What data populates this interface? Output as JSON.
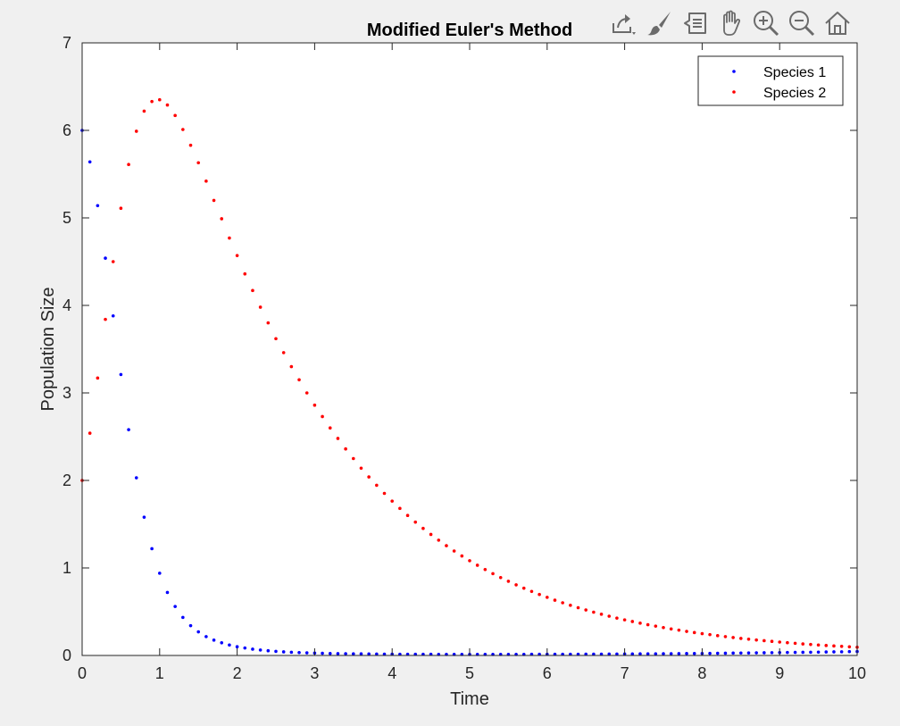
{
  "toolbar": [
    {
      "name": "export-icon"
    },
    {
      "name": "brush-icon"
    },
    {
      "name": "data-tips-icon"
    },
    {
      "name": "pan-icon"
    },
    {
      "name": "zoom-in-icon"
    },
    {
      "name": "zoom-out-icon"
    },
    {
      "name": "home-icon"
    }
  ],
  "chart_data": {
    "type": "scatter",
    "title": "Modified Euler's Method",
    "xlabel": "Time",
    "ylabel": "Population Size",
    "xlim": [
      0,
      10
    ],
    "ylim": [
      0,
      7
    ],
    "xticks": [
      0,
      1,
      2,
      3,
      4,
      5,
      6,
      7,
      8,
      9,
      10
    ],
    "yticks": [
      0,
      1,
      2,
      3,
      4,
      5,
      6,
      7
    ],
    "grid": false,
    "legend_position": "top-right",
    "x": [
      0,
      0.1,
      0.2,
      0.3,
      0.4,
      0.5,
      0.6,
      0.7,
      0.8,
      0.9,
      1.0,
      1.1,
      1.2,
      1.3,
      1.4,
      1.5,
      1.6,
      1.7,
      1.8,
      1.9,
      2.0,
      2.1,
      2.2,
      2.3,
      2.4,
      2.5,
      2.6,
      2.7,
      2.8,
      2.9,
      3.0,
      3.1,
      3.2,
      3.3,
      3.4,
      3.5,
      3.6,
      3.7,
      3.8,
      3.9,
      4.0,
      4.1,
      4.2,
      4.3,
      4.4,
      4.5,
      4.6,
      4.7,
      4.8,
      4.9,
      5.0,
      5.1,
      5.2,
      5.3,
      5.4,
      5.5,
      5.6,
      5.7,
      5.8,
      5.9,
      6.0,
      6.1,
      6.2,
      6.3,
      6.4,
      6.5,
      6.6,
      6.7,
      6.8,
      6.9,
      7.0,
      7.1,
      7.2,
      7.3,
      7.4,
      7.5,
      7.6,
      7.7,
      7.8,
      7.9,
      8.0,
      8.1,
      8.2,
      8.3,
      8.4,
      8.5,
      8.6,
      8.7,
      8.8,
      8.9,
      9.0,
      9.1,
      9.2,
      9.3,
      9.4,
      9.5,
      9.6,
      9.7,
      9.8,
      9.9,
      10.0
    ],
    "series": [
      {
        "name": "Species 1",
        "color": "#0000ff",
        "values": [
          6.0,
          5.64,
          5.14,
          4.54,
          3.88,
          3.21,
          2.58,
          2.03,
          1.58,
          1.22,
          0.94,
          0.72,
          0.56,
          0.435,
          0.34,
          0.27,
          0.215,
          0.175,
          0.145,
          0.12,
          0.1,
          0.085,
          0.072,
          0.062,
          0.054,
          0.047,
          0.041,
          0.037,
          0.033,
          0.03,
          0.027,
          0.025,
          0.023,
          0.021,
          0.02,
          0.019,
          0.018,
          0.017,
          0.016,
          0.015,
          0.015,
          0.014,
          0.014,
          0.013,
          0.013,
          0.013,
          0.012,
          0.012,
          0.012,
          0.012,
          0.012,
          0.012,
          0.012,
          0.012,
          0.012,
          0.012,
          0.012,
          0.012,
          0.013,
          0.013,
          0.013,
          0.013,
          0.014,
          0.014,
          0.014,
          0.015,
          0.015,
          0.015,
          0.016,
          0.016,
          0.017,
          0.017,
          0.018,
          0.018,
          0.019,
          0.02,
          0.02,
          0.021,
          0.022,
          0.023,
          0.023,
          0.024,
          0.025,
          0.026,
          0.027,
          0.028,
          0.029,
          0.03,
          0.031,
          0.032,
          0.033,
          0.034,
          0.035,
          0.036,
          0.037,
          0.038,
          0.04,
          0.041,
          0.042,
          0.044,
          0.045
        ]
      },
      {
        "name": "Species 2",
        "color": "#ff0000",
        "values": [
          2.0,
          2.54,
          3.17,
          3.84,
          4.5,
          5.11,
          5.61,
          5.99,
          6.22,
          6.33,
          6.35,
          6.29,
          6.17,
          6.01,
          5.83,
          5.63,
          5.42,
          5.2,
          4.99,
          4.77,
          4.57,
          4.36,
          4.17,
          3.98,
          3.8,
          3.62,
          3.46,
          3.3,
          3.15,
          3.0,
          2.86,
          2.73,
          2.6,
          2.48,
          2.36,
          2.25,
          2.14,
          2.04,
          1.945,
          1.852,
          1.764,
          1.68,
          1.6,
          1.524,
          1.452,
          1.383,
          1.317,
          1.254,
          1.194,
          1.137,
          1.083,
          1.031,
          0.982,
          0.935,
          0.89,
          0.848,
          0.807,
          0.769,
          0.732,
          0.697,
          0.664,
          0.632,
          0.602,
          0.573,
          0.546,
          0.52,
          0.495,
          0.471,
          0.449,
          0.427,
          0.407,
          0.388,
          0.369,
          0.351,
          0.335,
          0.319,
          0.303,
          0.289,
          0.275,
          0.262,
          0.249,
          0.238,
          0.226,
          0.215,
          0.205,
          0.195,
          0.186,
          0.177,
          0.169,
          0.161,
          0.153,
          0.146,
          0.139,
          0.132,
          0.126,
          0.12,
          0.114,
          0.109,
          0.104,
          0.099,
          0.094
        ]
      }
    ]
  }
}
